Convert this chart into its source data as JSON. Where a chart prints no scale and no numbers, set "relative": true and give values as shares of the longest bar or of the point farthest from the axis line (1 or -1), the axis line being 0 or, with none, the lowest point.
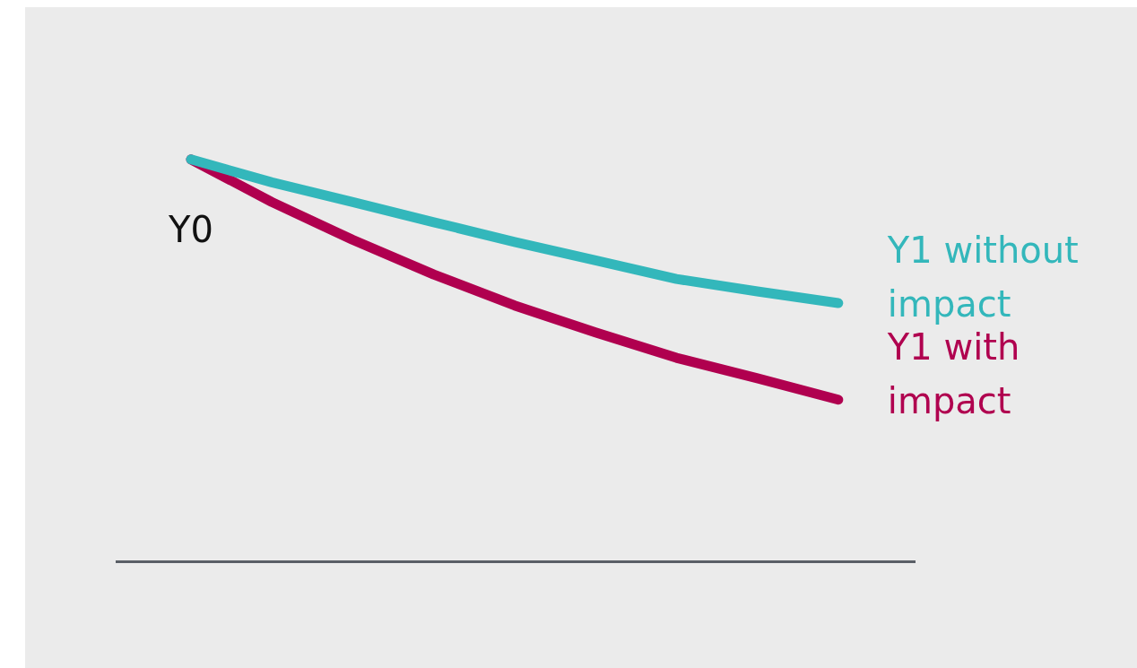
{
  "chart_data": {
    "type": "line",
    "relative": true,
    "grid": false,
    "legend": false,
    "marker": "none",
    "line_style": "solid",
    "categories": [
      null,
      null,
      null,
      null,
      null,
      null,
      null,
      null,
      null
    ],
    "annotations": [
      "Y0"
    ],
    "series": [
      {
        "name": "Y1 without impact",
        "color": "#33b7bb",
        "values": [
          1,
          0.943,
          0.894,
          0.844,
          0.795,
          0.749,
          0.703,
          0.672,
          0.643
        ]
      },
      {
        "name": "Y1 with impact",
        "color": "#b0004f",
        "values": [
          1,
          0.894,
          0.8,
          0.714,
          0.637,
          0.57,
          0.507,
          0.456,
          0.403
        ]
      }
    ]
  }
}
